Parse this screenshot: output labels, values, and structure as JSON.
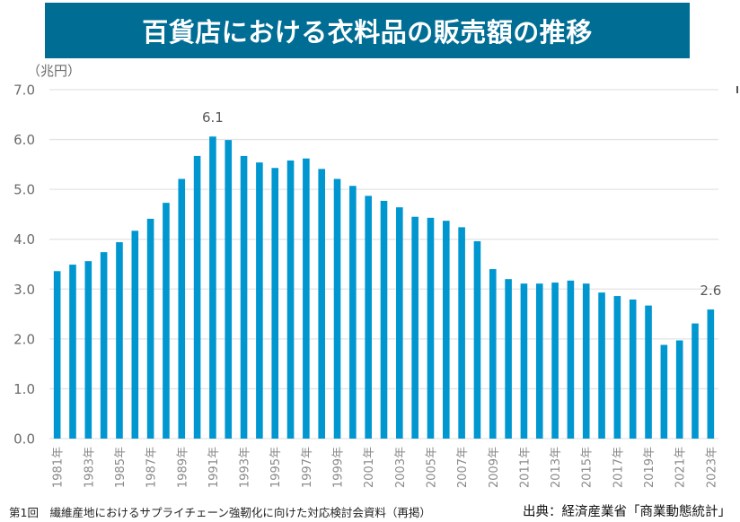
{
  "header": {
    "title": "百貨店における衣料品の販売額の推移"
  },
  "footer": {
    "left": "第1回　繊維産地におけるサプライチェーン強靭化に向けた対応検討会資料（再掲）",
    "right": "出典：経済産業省「商業動態統計」"
  },
  "colors": {
    "banner": "#006e94",
    "bar": "#0096d0",
    "grid": "#e3e3e3",
    "axis_text": "#6b6b6b"
  },
  "chart_data": {
    "type": "bar",
    "title": "百貨店における衣料品の販売額の推移",
    "ylabel": "（兆円）",
    "xlabel": "",
    "ylim": [
      0,
      7
    ],
    "yticks": [
      "0.0",
      "1.0",
      "2.0",
      "3.0",
      "4.0",
      "5.0",
      "6.0",
      "7.0"
    ],
    "grid": true,
    "categories": [
      "1981年",
      "1982年",
      "1983年",
      "1984年",
      "1985年",
      "1986年",
      "1987年",
      "1988年",
      "1989年",
      "1990年",
      "1991年",
      "1992年",
      "1993年",
      "1994年",
      "1995年",
      "1996年",
      "1997年",
      "1998年",
      "1999年",
      "2000年",
      "2001年",
      "2002年",
      "2003年",
      "2004年",
      "2005年",
      "2006年",
      "2007年",
      "2008年",
      "2009年",
      "2010年",
      "2011年",
      "2012年",
      "2013年",
      "2014年",
      "2015年",
      "2016年",
      "2017年",
      "2018年",
      "2019年",
      "2020年",
      "2021年",
      "2022年",
      "2023年"
    ],
    "xtick_labels_shown": [
      "1981年",
      "1983年",
      "1985年",
      "1987年",
      "1989年",
      "1991年",
      "1993年",
      "1995年",
      "1997年",
      "1999年",
      "2001年",
      "2003年",
      "2005年",
      "2007年",
      "2009年",
      "2011年",
      "2013年",
      "2015年",
      "2017年",
      "2019年",
      "2021年",
      "2023年"
    ],
    "values": [
      3.36,
      3.49,
      3.56,
      3.74,
      3.94,
      4.17,
      4.41,
      4.73,
      5.21,
      5.67,
      6.06,
      5.99,
      5.67,
      5.54,
      5.43,
      5.58,
      5.62,
      5.41,
      5.21,
      5.07,
      4.87,
      4.77,
      4.64,
      4.45,
      4.43,
      4.37,
      4.24,
      3.96,
      3.4,
      3.2,
      3.11,
      3.11,
      3.13,
      3.17,
      3.11,
      2.93,
      2.86,
      2.79,
      2.67,
      1.88,
      1.97,
      2.31,
      2.59
    ],
    "annotations": [
      {
        "category": "1991年",
        "text": "6.1"
      },
      {
        "category": "2023年",
        "text": "2.6"
      }
    ]
  }
}
